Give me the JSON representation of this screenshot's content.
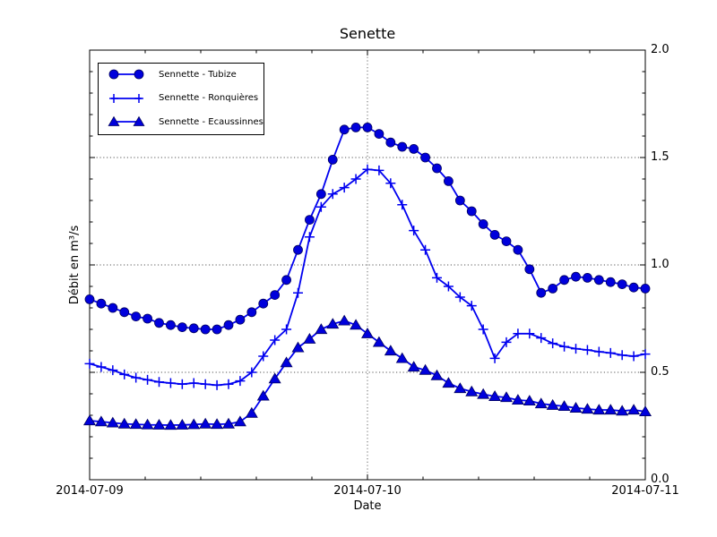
{
  "title": "Senette",
  "axes": {
    "xlabel": "Date",
    "ylabel": "Débit en m³/s",
    "x_tick_labels": [
      "2014-07-09",
      "2014-07-10",
      "2014-07-11"
    ],
    "y_tick_labels": [
      "0.0",
      "0.5",
      "1.0",
      "1.5",
      "2.0"
    ],
    "y_tick_values": [
      0.0,
      0.5,
      1.0,
      1.5,
      2.0
    ],
    "y_tick_side": "right",
    "minor_x_ticks_per_day": 5,
    "minor_y_tick_step": 0.1
  },
  "legend": {
    "position": "upper left",
    "marker_points_per_sample": 2
  },
  "colors": {
    "series_line": "#0000f0",
    "marker_fill": "#0000dc",
    "marker_edge": "#000060",
    "grid": "#555555",
    "spine": "#000000",
    "text": "#000000",
    "background": "#ffffff"
  },
  "chart_data": {
    "type": "line",
    "title": "Senette",
    "xlabel": "Date",
    "ylabel": "Débit en m³/s",
    "x_start": "2014-07-09 00:00",
    "x_end": "2014-07-11 00:00",
    "x_step_hours": 1,
    "n_points": 49,
    "ylim": [
      0.0,
      2.0
    ],
    "xlim_labels": [
      "2014-07-09",
      "2014-07-11"
    ],
    "grid": {
      "style": "dotted",
      "y_lines": [
        0.5,
        1.0,
        1.5
      ],
      "x_lines": [
        "2014-07-10"
      ]
    },
    "legend_position": "upper left",
    "series": [
      {
        "name": "Sennette - Tubize",
        "marker": "circle",
        "color": "#0000f0",
        "values": [
          0.84,
          0.82,
          0.8,
          0.78,
          0.76,
          0.75,
          0.73,
          0.72,
          0.71,
          0.705,
          0.7,
          0.7,
          0.72,
          0.745,
          0.78,
          0.82,
          0.86,
          0.93,
          1.07,
          1.21,
          1.33,
          1.49,
          1.63,
          1.64,
          1.64,
          1.61,
          1.57,
          1.55,
          1.54,
          1.5,
          1.45,
          1.39,
          1.3,
          1.25,
          1.19,
          1.14,
          1.11,
          1.07,
          0.98,
          0.87,
          0.89,
          0.93,
          0.945,
          0.94,
          0.93,
          0.92,
          0.91,
          0.895,
          0.89
        ]
      },
      {
        "name": "Sennette - Ronquières",
        "marker": "plus",
        "color": "#0000f0",
        "values": [
          0.54,
          0.525,
          0.51,
          0.49,
          0.475,
          0.465,
          0.455,
          0.45,
          0.445,
          0.45,
          0.445,
          0.44,
          0.445,
          0.46,
          0.5,
          0.575,
          0.65,
          0.7,
          0.87,
          1.13,
          1.27,
          1.33,
          1.36,
          1.4,
          1.445,
          1.44,
          1.38,
          1.28,
          1.16,
          1.07,
          0.94,
          0.9,
          0.85,
          0.81,
          0.7,
          0.565,
          0.64,
          0.68,
          0.68,
          0.66,
          0.635,
          0.62,
          0.61,
          0.604,
          0.596,
          0.59,
          0.58,
          0.575,
          0.585
        ]
      },
      {
        "name": "Sennette - Ecaussinnes",
        "marker": "triangle",
        "color": "#0000f0",
        "values": [
          0.275,
          0.27,
          0.265,
          0.26,
          0.258,
          0.256,
          0.255,
          0.254,
          0.255,
          0.257,
          0.26,
          0.258,
          0.26,
          0.27,
          0.31,
          0.39,
          0.47,
          0.545,
          0.615,
          0.655,
          0.7,
          0.725,
          0.74,
          0.72,
          0.68,
          0.64,
          0.6,
          0.565,
          0.525,
          0.51,
          0.485,
          0.45,
          0.425,
          0.41,
          0.398,
          0.388,
          0.383,
          0.371,
          0.367,
          0.354,
          0.347,
          0.342,
          0.334,
          0.329,
          0.325,
          0.325,
          0.32,
          0.325,
          0.317
        ]
      }
    ]
  }
}
